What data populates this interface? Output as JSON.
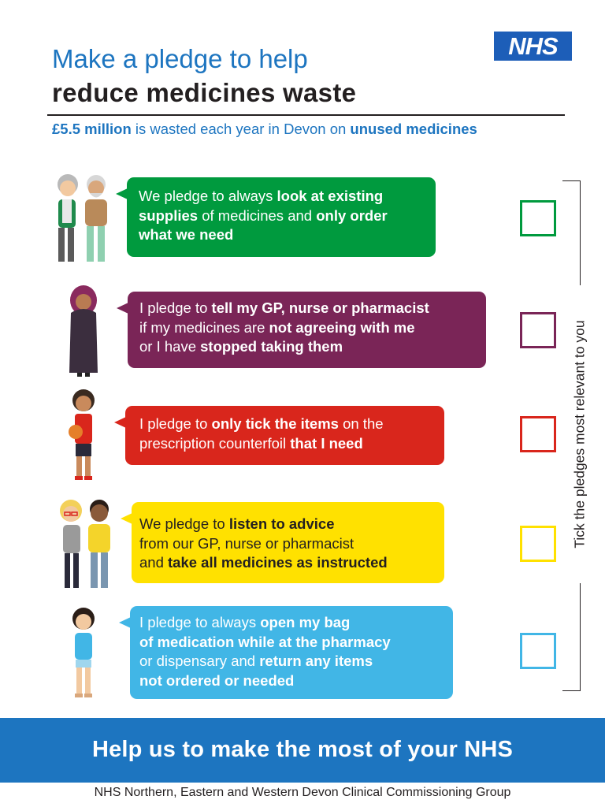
{
  "header": {
    "title_line1": "Make a pledge to help",
    "title_line2": "reduce medicines waste",
    "subtitle_part1": "£5.5 million",
    "subtitle_part2": " is wasted each year in Devon on ",
    "subtitle_part3": "unused medicines",
    "logo_text": "NHS"
  },
  "pledges": [
    {
      "color": "#009a3e",
      "lines": [
        [
          {
            "t": "We pledge to always ",
            "b": false
          },
          {
            "t": "look at existing",
            "b": true
          }
        ],
        [
          {
            "t": "supplies",
            "b": true
          },
          {
            "t": " of medicines and ",
            "b": false
          },
          {
            "t": "only order",
            "b": true
          }
        ],
        [
          {
            "t": "what we need",
            "b": true
          }
        ]
      ]
    },
    {
      "color": "#7a2557",
      "lines": [
        [
          {
            "t": "I pledge to ",
            "b": false
          },
          {
            "t": "tell my GP, nurse or pharmacist",
            "b": true
          }
        ],
        [
          {
            "t": "if my medicines are ",
            "b": false
          },
          {
            "t": "not agreeing with me",
            "b": true
          }
        ],
        [
          {
            "t": "or I have ",
            "b": false
          },
          {
            "t": "stopped taking them",
            "b": true
          }
        ]
      ]
    },
    {
      "color": "#d9261c",
      "lines": [
        [
          {
            "t": "I pledge to ",
            "b": false
          },
          {
            "t": "only tick the items",
            "b": true
          },
          {
            "t": " on the",
            "b": false
          }
        ],
        [
          {
            "t": "prescription counterfoil ",
            "b": false
          },
          {
            "t": "that I need",
            "b": true
          }
        ]
      ]
    },
    {
      "color": "#ffe100",
      "lines": [
        [
          {
            "t": "We pledge to ",
            "b": false
          },
          {
            "t": "listen to advice",
            "b": true
          }
        ],
        [
          {
            "t": "from our GP, nurse or pharmacist",
            "b": false
          }
        ],
        [
          {
            "t": "and ",
            "b": false
          },
          {
            "t": "take all medicines as instructed",
            "b": true
          }
        ]
      ]
    },
    {
      "color": "#41b6e6",
      "lines": [
        [
          {
            "t": "I pledge to always ",
            "b": false
          },
          {
            "t": "open my bag",
            "b": true
          }
        ],
        [
          {
            "t": "of medication while at the pharmacy",
            "b": true
          }
        ],
        [
          {
            "t": "or dispensary and ",
            "b": false
          },
          {
            "t": "return any items",
            "b": true
          }
        ],
        [
          {
            "t": "not ordered or needed",
            "b": true
          }
        ]
      ]
    }
  ],
  "side_label": "Tick the pledges most relevant to you",
  "banner": "Help us to make the most of your NHS",
  "footer": "NHS Northern, Eastern and Western Devon Clinical Commissioning Group"
}
